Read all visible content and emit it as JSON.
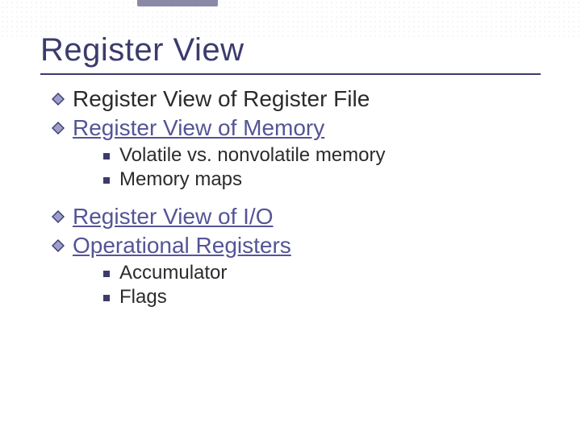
{
  "colors": {
    "title_color": "#3b3b6d",
    "rule_color": "#3b3b6d",
    "body_text": "#2b2b2b",
    "link_text": "#545497",
    "diamond_fill": "#9e9ecb",
    "diamond_stroke": "#3b3b6d",
    "square_bullet": "#3b3b6d",
    "dotted_bg_dot": "#d9d9d9",
    "top_bar": "#8a8aa8",
    "background": "#ffffff"
  },
  "typography": {
    "title_fontsize_pt": 30,
    "lvl1_fontsize_pt": 21,
    "lvl2_fontsize_pt": 18,
    "font_family": "Verdana"
  },
  "title": "Register View",
  "items": [
    {
      "text": "Register View of Register File",
      "linked": false,
      "sub": []
    },
    {
      "text": "Register View of Memory",
      "linked": true,
      "sub": [
        "Volatile vs. nonvolatile memory",
        "Memory maps"
      ]
    },
    {
      "text": "Register View of I/O",
      "linked": true,
      "sub": []
    },
    {
      "text": "Operational Registers",
      "linked": true,
      "sub": [
        "Accumulator",
        "Flags"
      ]
    }
  ]
}
